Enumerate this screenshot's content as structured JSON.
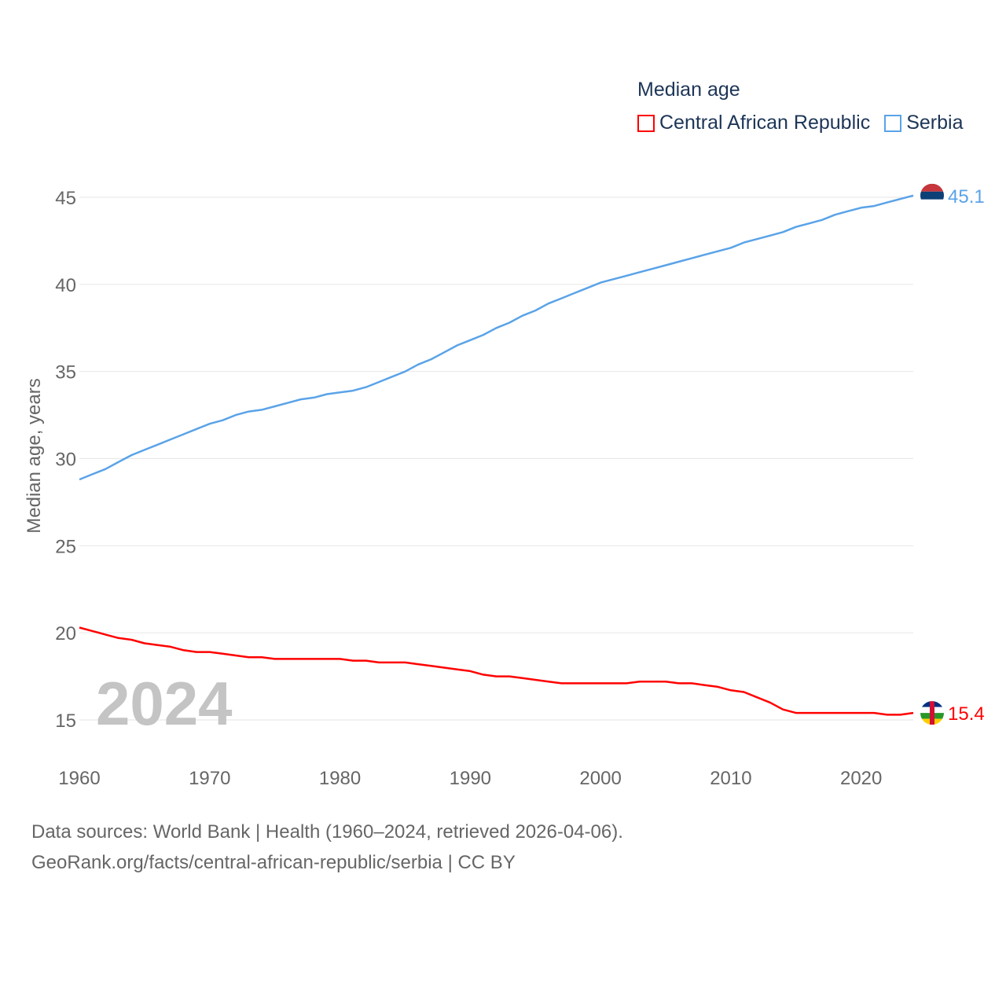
{
  "chart_data": {
    "type": "line",
    "title": "Median age",
    "ylabel": "Median age, years",
    "xlabel": "",
    "ylim": [
      13,
      46.5
    ],
    "xlim": [
      1960,
      2024
    ],
    "yticks": [
      15,
      20,
      25,
      30,
      35,
      40,
      45
    ],
    "xticks": [
      1960,
      1970,
      1980,
      1990,
      2000,
      2010,
      2020
    ],
    "grid": true,
    "legend_placement": "top-right",
    "year_watermark": "2024",
    "series": [
      {
        "name": "Central African Republic",
        "color": "#ff0000",
        "end_label": "15.4",
        "values": [
          20.3,
          20.1,
          19.9,
          19.7,
          19.6,
          19.4,
          19.3,
          19.2,
          19.0,
          18.9,
          18.9,
          18.8,
          18.7,
          18.6,
          18.6,
          18.5,
          18.5,
          18.5,
          18.5,
          18.5,
          18.5,
          18.4,
          18.4,
          18.3,
          18.3,
          18.3,
          18.2,
          18.1,
          18.0,
          17.9,
          17.8,
          17.6,
          17.5,
          17.5,
          17.4,
          17.3,
          17.2,
          17.1,
          17.1,
          17.1,
          17.1,
          17.1,
          17.1,
          17.2,
          17.2,
          17.2,
          17.1,
          17.1,
          17.0,
          16.9,
          16.7,
          16.6,
          16.3,
          16.0,
          15.6,
          15.4,
          15.4,
          15.4,
          15.4,
          15.4,
          15.4,
          15.4,
          15.3,
          15.3,
          15.4
        ]
      },
      {
        "name": "Serbia",
        "color": "#5aa3e8",
        "end_label": "45.1",
        "values": [
          28.8,
          29.1,
          29.4,
          29.8,
          30.2,
          30.5,
          30.8,
          31.1,
          31.4,
          31.7,
          32.0,
          32.2,
          32.5,
          32.7,
          32.8,
          33.0,
          33.2,
          33.4,
          33.5,
          33.7,
          33.8,
          33.9,
          34.1,
          34.4,
          34.7,
          35.0,
          35.4,
          35.7,
          36.1,
          36.5,
          36.8,
          37.1,
          37.5,
          37.8,
          38.2,
          38.5,
          38.9,
          39.2,
          39.5,
          39.8,
          40.1,
          40.3,
          40.5,
          40.7,
          40.9,
          41.1,
          41.3,
          41.5,
          41.7,
          41.9,
          42.1,
          42.4,
          42.6,
          42.8,
          43.0,
          43.3,
          43.5,
          43.7,
          44.0,
          44.2,
          44.4,
          44.5,
          44.7,
          44.9,
          45.1
        ]
      }
    ]
  },
  "footer": {
    "line1": "Data sources: World Bank | Health (1960–2024, retrieved 2026-04-06).",
    "line2": "GeoRank.org/facts/central-african-republic/serbia | CC BY"
  }
}
